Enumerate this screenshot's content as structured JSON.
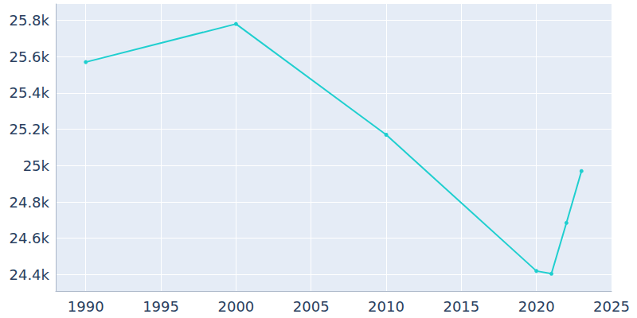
{
  "chart_data": {
    "type": "line",
    "x": [
      1990,
      2000,
      2010,
      2020,
      2021,
      2022,
      2023
    ],
    "values": [
      25570,
      25780,
      25170,
      24420,
      24405,
      24685,
      24970
    ],
    "color": "#1fcfcf",
    "marker": "circle",
    "xlim": [
      1988,
      2025
    ],
    "xticks": [
      1990,
      1995,
      2000,
      2005,
      2010,
      2015,
      2020,
      2025
    ],
    "ylim": [
      24310,
      25890
    ],
    "yticks": [
      {
        "value": 24400,
        "label": "24.4k"
      },
      {
        "value": 24600,
        "label": "24.6k"
      },
      {
        "value": 24800,
        "label": "24.8k"
      },
      {
        "value": 25000,
        "label": "25k"
      },
      {
        "value": 25200,
        "label": "25.2k"
      },
      {
        "value": 25400,
        "label": "25.4k"
      },
      {
        "value": 25600,
        "label": "25.6k"
      },
      {
        "value": 25800,
        "label": "25.8k"
      }
    ],
    "grid": true
  }
}
